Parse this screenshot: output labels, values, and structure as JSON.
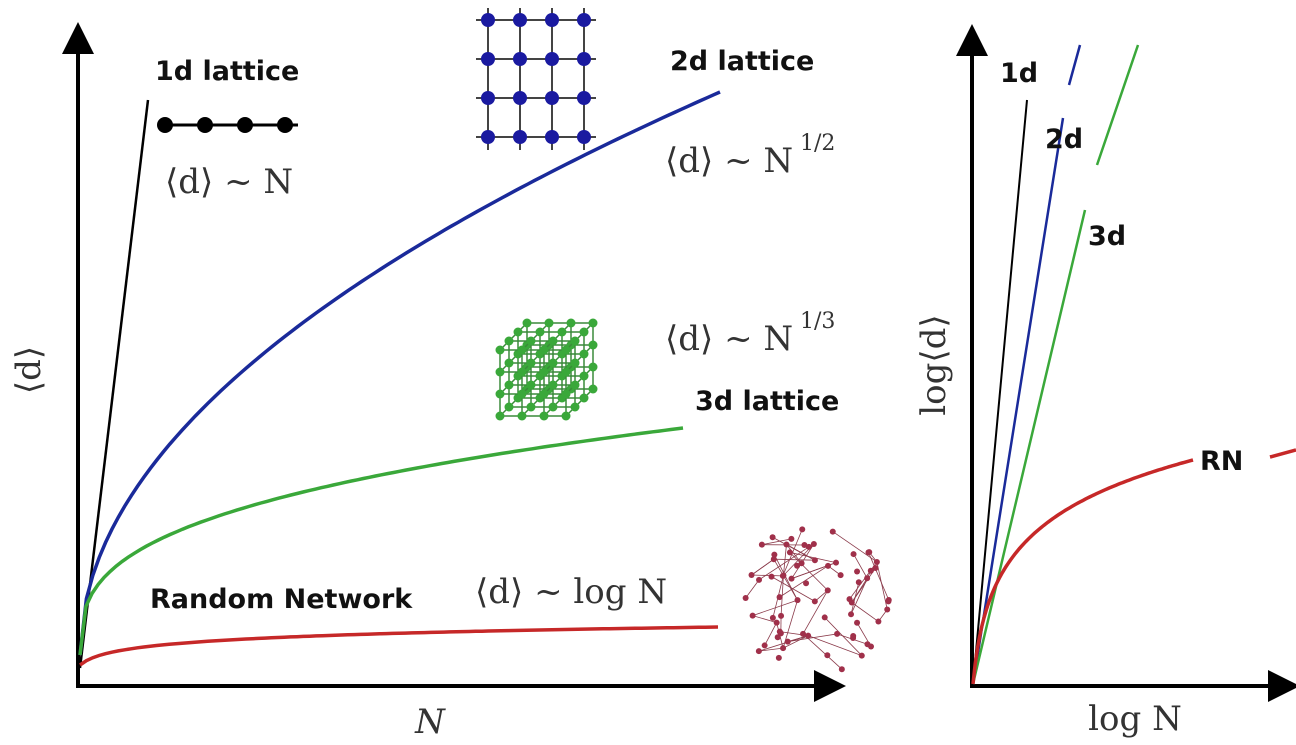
{
  "left": {
    "y_label": "⟨d⟩",
    "x_label": "N",
    "lattice_1d": {
      "name": "1d lattice",
      "formula": "⟨d⟩ ~ N"
    },
    "lattice_2d": {
      "name": "2d lattice",
      "formula": "⟨d⟩ ~ N",
      "exponent": "1/2"
    },
    "lattice_3d": {
      "name": "3d lattice",
      "formula": "⟨d⟩ ~ N",
      "exponent": "1/3"
    },
    "random": {
      "name": "Random Network",
      "formula": "⟨d⟩ ~ log N"
    }
  },
  "right": {
    "y_label": "log⟨d⟩",
    "x_label": "log N",
    "labels": [
      "1d",
      "2d",
      "3d",
      "RN"
    ]
  }
}
